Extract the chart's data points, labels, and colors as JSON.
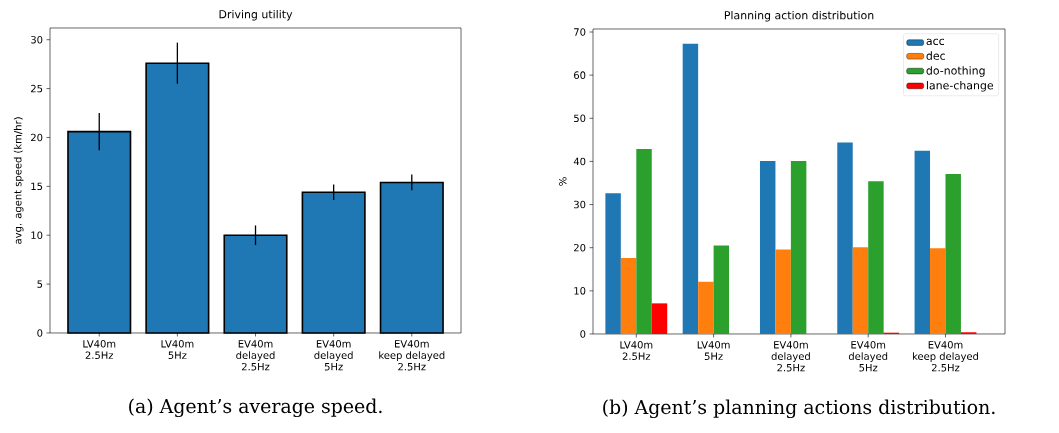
{
  "chart_data": [
    {
      "type": "bar",
      "title": "Driving utility",
      "ylabel": "avg. agent speed (km/hr)",
      "categories": [
        "LV40m\n2.5Hz",
        "LV40m\n5Hz",
        "EV40m\ndelayed\n2.5Hz",
        "EV40m\ndelayed\n5Hz",
        "EV40m\nkeep delayed\n2.5Hz"
      ],
      "values": [
        20.6,
        27.6,
        10.0,
        14.4,
        15.4
      ],
      "color": "#1f77b4",
      "errors": [
        1.9,
        2.1,
        1.0,
        0.8,
        0.8
      ],
      "ylim": [
        0,
        31.2
      ],
      "yticks": [
        0,
        5,
        10,
        15,
        20,
        25,
        30
      ],
      "annotations": [
        "(a) Agent’s average speed."
      ]
    },
    {
      "type": "bar",
      "title": "Planning action distribution",
      "ylabel": "%",
      "categories": [
        "LV40m\n2.5Hz",
        "LV40m\n5Hz",
        "EV40m\ndelayed\n2.5Hz",
        "EV40m\ndelayed\n5Hz",
        "EV40m\nkeep delayed\n2.5Hz"
      ],
      "series": [
        {
          "name": "acc",
          "color": "#1f77b4",
          "values": [
            32.6,
            67.3,
            40.1,
            44.4,
            42.5
          ]
        },
        {
          "name": "dec",
          "color": "#ff7f0e",
          "values": [
            17.6,
            12.1,
            19.6,
            20.1,
            19.9
          ]
        },
        {
          "name": "do-nothing",
          "color": "#2ca02c",
          "values": [
            42.9,
            20.5,
            40.1,
            35.4,
            37.1
          ]
        },
        {
          "name": "lane-change",
          "color": "#ff0000",
          "values": [
            7.1,
            0,
            0,
            0.3,
            0.4
          ]
        }
      ],
      "ylim": [
        0,
        70.7
      ],
      "yticks": [
        0,
        10,
        20,
        30,
        40,
        50,
        60,
        70
      ],
      "legend": "top right",
      "annotations": [
        "(b) Agent’s planning actions distribution."
      ]
    }
  ]
}
